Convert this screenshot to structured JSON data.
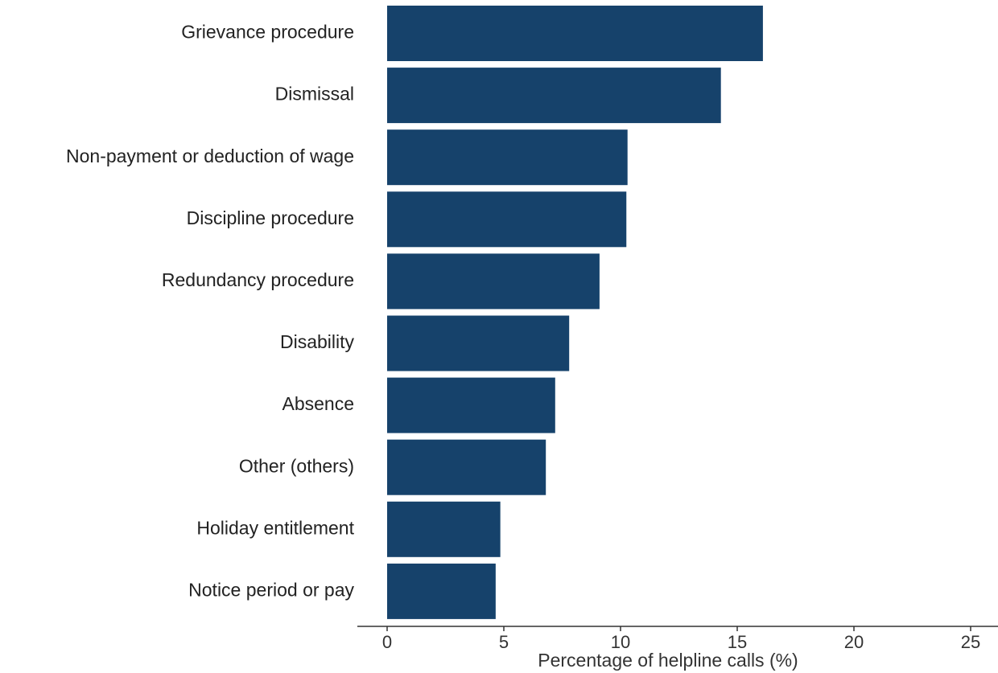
{
  "chart_data": {
    "type": "bar",
    "orientation": "horizontal",
    "categories": [
      "Grievance procedure",
      "Dismissal",
      "Non-payment or deduction of wage",
      "Discipline procedure",
      "Redundancy procedure",
      "Disability",
      "Absence",
      "Other (others)",
      "Holiday entitlement",
      "Notice period or pay"
    ],
    "values": [
      16.1,
      14.3,
      10.3,
      10.25,
      9.1,
      7.8,
      7.2,
      6.8,
      4.85,
      4.65
    ],
    "title": "",
    "xlabel": "Percentage of helpline calls (%)",
    "ylabel": "",
    "xlim": [
      0,
      25
    ],
    "xticks": [
      0,
      5,
      10,
      15,
      20,
      25
    ],
    "grid": false,
    "legend": "none",
    "bar_color": "#16426b"
  }
}
